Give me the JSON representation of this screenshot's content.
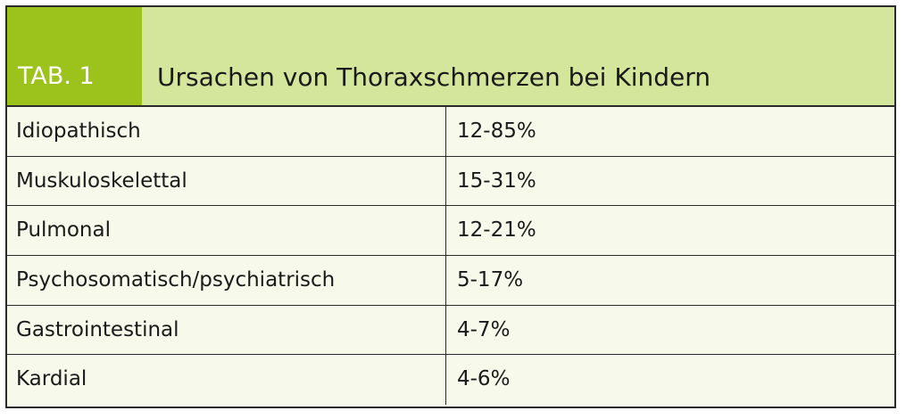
{
  "table": {
    "tab_label": "TAB. 1",
    "title": "Ursachen von Thoraxschmerzen bei Kindern",
    "rows": [
      {
        "cause": "Idiopathisch",
        "value": "12-85%"
      },
      {
        "cause": "Muskuloskelettal",
        "value": "15-31%"
      },
      {
        "cause": "Pulmonal",
        "value": "12-21%"
      },
      {
        "cause": "Psychosomatisch/psychiatrisch",
        "value": "5-17%"
      },
      {
        "cause": "Gastrointestinal",
        "value": "4-7%"
      },
      {
        "cause": "Kardial",
        "value": "4-6%"
      }
    ]
  },
  "colors": {
    "tab_green": "#9cc31b",
    "header_light_green": "#d4e59c",
    "row_background": "#f7f9ea",
    "border": "#2b2b2b"
  }
}
